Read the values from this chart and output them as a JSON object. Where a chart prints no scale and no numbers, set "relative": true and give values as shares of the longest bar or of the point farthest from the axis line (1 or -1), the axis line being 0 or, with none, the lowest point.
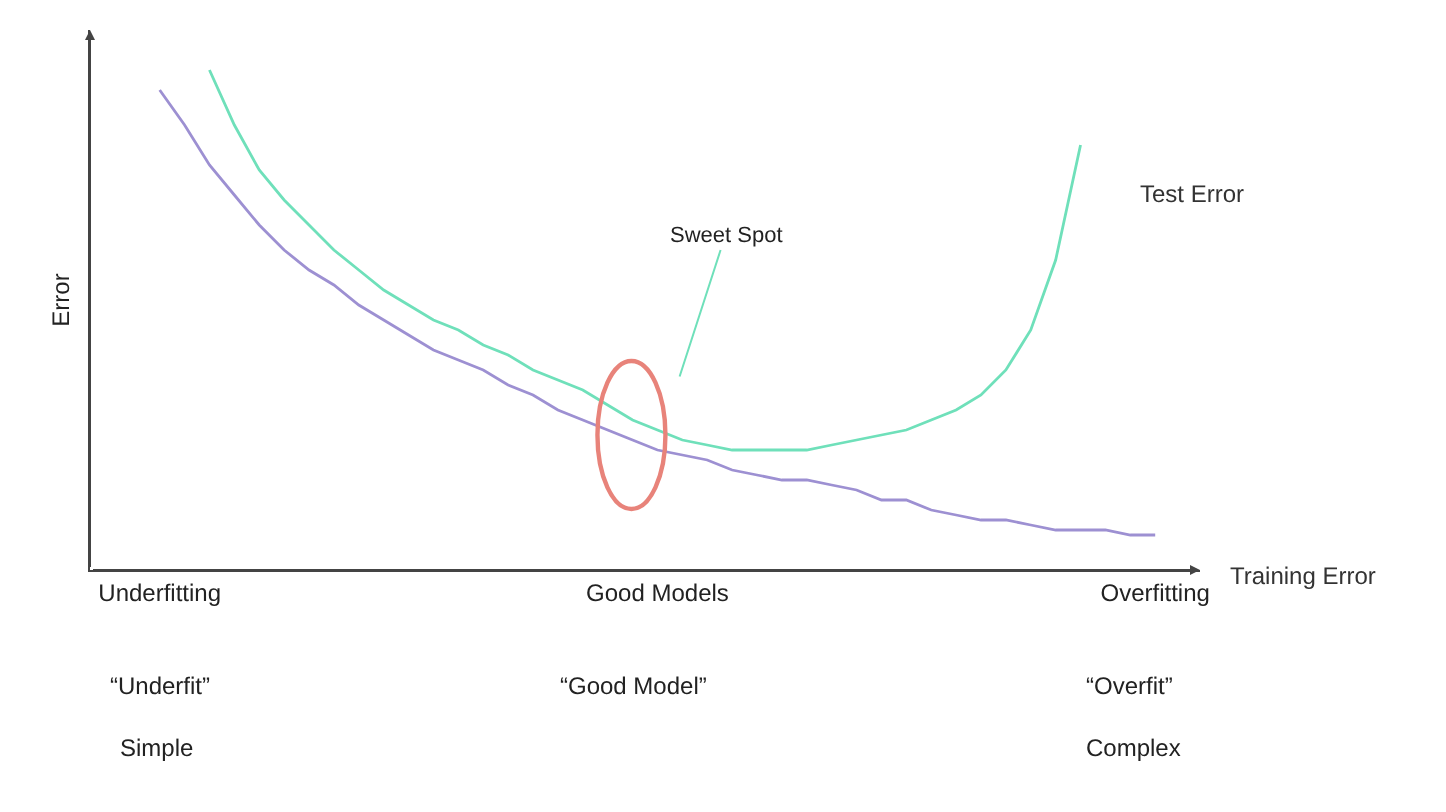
{
  "chart_data": {
    "type": "line",
    "relative": true,
    "ylabel": "Error",
    "categories": [
      "Underfitting",
      null,
      null,
      null,
      null,
      null,
      null,
      null,
      null,
      null,
      null,
      null,
      null,
      null,
      null,
      null,
      null,
      null,
      null,
      null,
      "Good Models",
      null,
      null,
      null,
      null,
      null,
      null,
      null,
      null,
      null,
      null,
      null,
      null,
      null,
      null,
      null,
      null,
      null,
      null,
      null,
      "Overfitting"
    ],
    "series": [
      {
        "name": "Training Error",
        "color": "#9d90d2",
        "values": [
          0.96,
          0.89,
          0.81,
          0.75,
          0.69,
          0.64,
          0.6,
          0.57,
          0.53,
          0.5,
          0.47,
          0.44,
          0.42,
          0.4,
          0.37,
          0.35,
          0.32,
          0.3,
          0.28,
          0.26,
          0.24,
          0.23,
          0.22,
          0.2,
          0.19,
          0.18,
          0.18,
          0.17,
          0.16,
          0.14,
          0.14,
          0.12,
          0.11,
          0.1,
          0.1,
          0.09,
          0.08,
          0.08,
          0.08,
          0.07,
          0.07
        ]
      },
      {
        "name": "Test Error",
        "color": "#6fe0ba",
        "values": [
          null,
          null,
          1.0,
          0.89,
          0.8,
          0.74,
          0.69,
          0.64,
          0.6,
          0.56,
          0.53,
          0.5,
          0.48,
          0.45,
          0.43,
          0.4,
          0.38,
          0.36,
          0.33,
          0.3,
          0.28,
          0.26,
          0.25,
          0.24,
          0.24,
          0.24,
          0.24,
          0.25,
          0.26,
          0.27,
          0.28,
          0.3,
          0.32,
          0.35,
          0.4,
          0.48,
          0.62,
          0.85,
          null,
          null,
          null
        ]
      }
    ],
    "annotations": [
      {
        "text": "Sweet Spot",
        "x": "Good Models",
        "y": 0.25
      },
      "“Underfit”",
      "“Good Model”",
      "“Overfit”",
      "Simple",
      "Complex"
    ],
    "marker": "none",
    "line_style": "solid"
  }
}
